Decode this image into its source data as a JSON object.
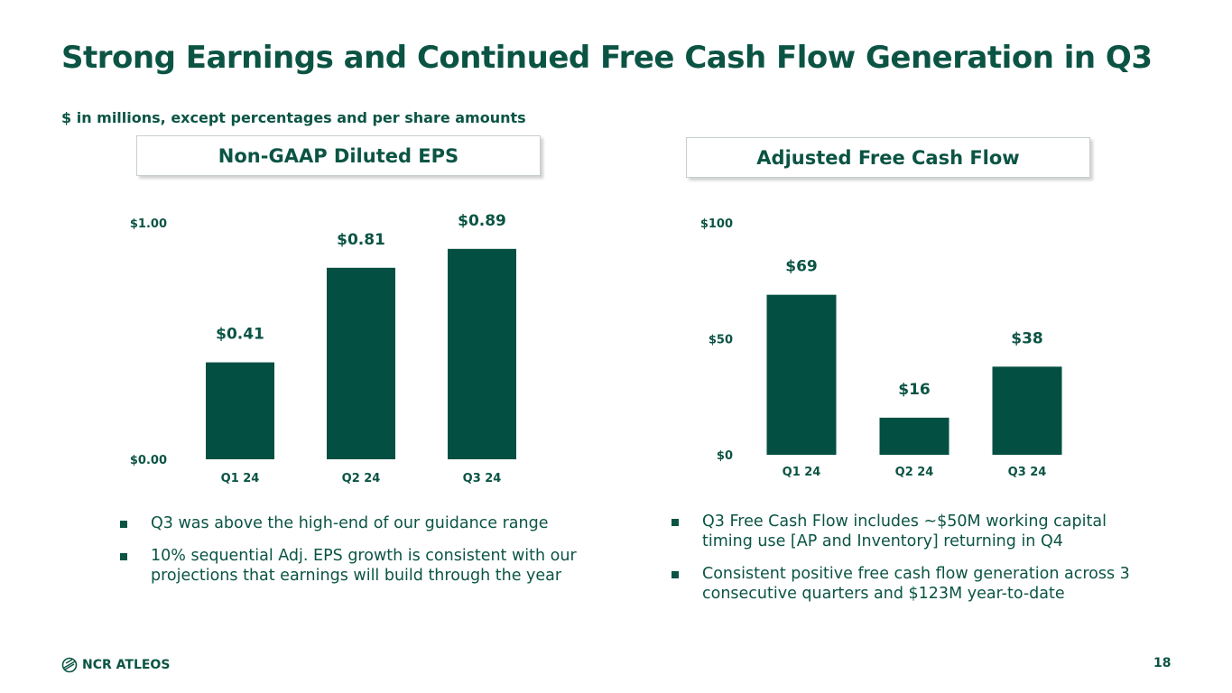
{
  "slide": {
    "title": "Strong Earnings and Continued Free Cash Flow Generation in Q3",
    "subtitle": "$ in millions, except percentages and per share amounts",
    "page_number": "18",
    "logo_text": "NCR ATLEOS",
    "bar_color": "#034f42",
    "text_color": "#0b5444"
  },
  "left_panel": {
    "header": "Non-GAAP Diluted EPS",
    "bullets": [
      "Q3 was above the high-end of our guidance range",
      "10% sequential Adj. EPS growth is consistent with our projections that earnings will build through the year"
    ]
  },
  "right_panel": {
    "header": "Adjusted Free Cash Flow",
    "bullets": [
      "Q3 Free Cash Flow includes ~$50M working capital timing use [AP and Inventory] returning in Q4",
      "Consistent positive free cash flow generation across 3 consecutive quarters and $123M year-to-date"
    ]
  },
  "chart_data": [
    {
      "type": "bar",
      "title": "Non-GAAP Diluted EPS",
      "categories": [
        "Q1 24",
        "Q2 24",
        "Q3 24"
      ],
      "values": [
        0.41,
        0.81,
        0.89
      ],
      "value_labels": [
        "$0.41",
        "$0.81",
        "$0.89"
      ],
      "ytick_values": [
        0,
        1
      ],
      "ytick_labels": [
        "$0.00",
        "$1.00"
      ],
      "ylim": [
        0,
        1
      ],
      "grid": false,
      "legend": "none"
    },
    {
      "type": "bar",
      "title": "Adjusted Free Cash Flow",
      "categories": [
        "Q1 24",
        "Q2 24",
        "Q3 24"
      ],
      "values": [
        69,
        16,
        38
      ],
      "value_labels": [
        "$69",
        "$16",
        "$38"
      ],
      "ytick_values": [
        0,
        50,
        100
      ],
      "ytick_labels": [
        "$0",
        "$50",
        "$100"
      ],
      "ylim": [
        0,
        100
      ],
      "grid": false,
      "legend": "none"
    }
  ]
}
